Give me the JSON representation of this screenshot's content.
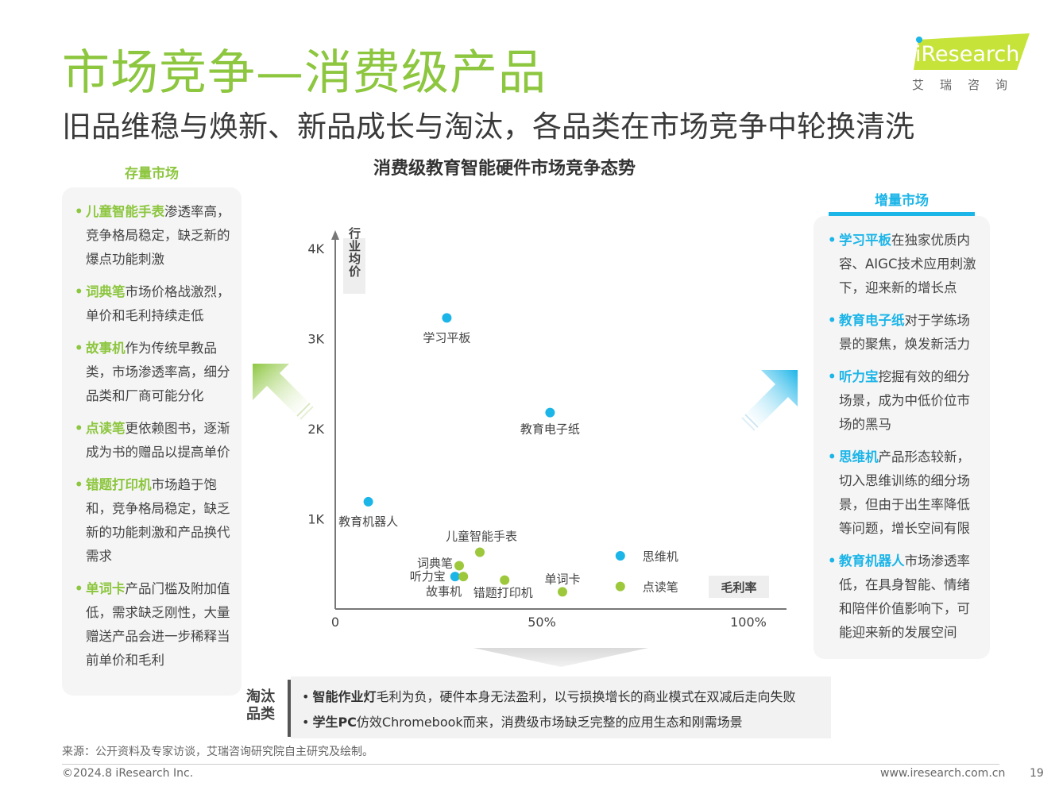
{
  "header": {
    "title": "市场竞争—消费级产品",
    "subtitle": "旧品维稳与焕新、新品成长与淘汰，各品类在市场竞争中轮换清洗"
  },
  "logo": {
    "brand": "iResearch",
    "cn": "艾瑞咨询"
  },
  "left_panel": {
    "heading": "存量市场",
    "items": [
      {
        "bullet": "•",
        "highlight": "儿童智能手表",
        "text": "渗透率高，竞争格局稳定，缺乏新的爆点功能刺激"
      },
      {
        "bullet": "•",
        "highlight": "词典笔",
        "text": "市场价格战激烈，单价和毛利持续走低"
      },
      {
        "bullet": "•",
        "highlight": "故事机",
        "text": "作为传统早教品类，市场渗透率高，细分品类和厂商可能分化"
      },
      {
        "bullet": "•",
        "highlight": "点读笔",
        "text": "更依赖图书，逐渐成为书的赠品以提高单价"
      },
      {
        "bullet": "•",
        "highlight": "错题打印机",
        "text": "市场趋于饱和，竞争格局稳定，缺乏新的功能刺激和产品换代需求"
      },
      {
        "bullet": "•",
        "highlight": "单词卡",
        "text": "产品门槛及附加值低，需求缺乏刚性，大量赠送产品会进一步稀释当前单价和毛利"
      }
    ]
  },
  "right_panel": {
    "heading": "增量市场",
    "items": [
      {
        "bullet": "•",
        "highlight": "学习平板",
        "text": "在独家优质内容、AIGC技术应用刺激下，迎来新的增长点"
      },
      {
        "bullet": "•",
        "highlight": "教育电子纸",
        "text": "对于学练场景的聚焦，焕发新活力"
      },
      {
        "bullet": "•",
        "highlight": "听力宝",
        "text": "挖掘有效的细分场景，成为中低价位市场的黑马"
      },
      {
        "bullet": "•",
        "highlight": "思维机",
        "text": "产品形态较新，切入思维训练的细分场景，但由于出生率降低等问题，增长空间有限"
      },
      {
        "bullet": "•",
        "highlight": "教育机器人",
        "text": "市场渗透率低，在具身智能、情绪和陪伴价值影响下，可能迎来新的发展空间"
      }
    ]
  },
  "chart_data": {
    "type": "scatter",
    "title": "消费级教育智能硬件市场竞争态势",
    "xlabel": "毛利率",
    "ylabel": "行业均价",
    "xlim": [
      0,
      100
    ],
    "ylim": [
      0,
      4000
    ],
    "x_ticks": [
      {
        "value": 0,
        "label": "0"
      },
      {
        "value": 50,
        "label": "50%"
      },
      {
        "value": 100,
        "label": "100%"
      }
    ],
    "y_ticks": [
      {
        "value": 1000,
        "label": "1K"
      },
      {
        "value": 2000,
        "label": "2K"
      },
      {
        "value": 3000,
        "label": "3K"
      },
      {
        "value": 4000,
        "label": "4K"
      }
    ],
    "colors": {
      "stock": "#9dc83c",
      "growth": "#1cb5e8"
    },
    "points": [
      {
        "name": "学习平板",
        "x": 27,
        "y": 3230,
        "group": "growth"
      },
      {
        "name": "教育电子纸",
        "x": 52,
        "y": 2180,
        "group": "growth"
      },
      {
        "name": "教育机器人",
        "x": 8,
        "y": 1190,
        "group": "growth"
      },
      {
        "name": "思维机",
        "x": 69,
        "y": 590,
        "group": "growth"
      },
      {
        "name": "听力宝",
        "x": 29,
        "y": 360,
        "group": "growth"
      },
      {
        "name": "儿童智能手表",
        "x": 35,
        "y": 630,
        "group": "stock"
      },
      {
        "name": "词典笔",
        "x": 30,
        "y": 480,
        "group": "stock"
      },
      {
        "name": "故事机",
        "x": 31,
        "y": 360,
        "group": "stock"
      },
      {
        "name": "错题打印机",
        "x": 41,
        "y": 320,
        "group": "stock"
      },
      {
        "name": "单词卡",
        "x": 55,
        "y": 190,
        "group": "stock"
      },
      {
        "name": "点读笔",
        "x": 69,
        "y": 250,
        "group": "stock"
      }
    ]
  },
  "elimination": {
    "label": "淘汰品类",
    "lines": [
      {
        "bullet": "•",
        "highlight": "智能作业灯",
        "text": "毛利为负，硬件本身无法盈利，以亏损换增长的商业模式在双减后走向失败"
      },
      {
        "bullet": "•",
        "highlight": "学生PC",
        "text": "仿效Chromebook而来，消费级市场缺乏完整的应用生态和刚需场景"
      }
    ]
  },
  "footer": {
    "source": "来源：公开资料及专家访谈，艾瑞咨询研究院自主研究及绘制。",
    "copyright": "©2024.8 iResearch Inc.",
    "website": "www.iresearch.com.cn",
    "page": "19"
  }
}
